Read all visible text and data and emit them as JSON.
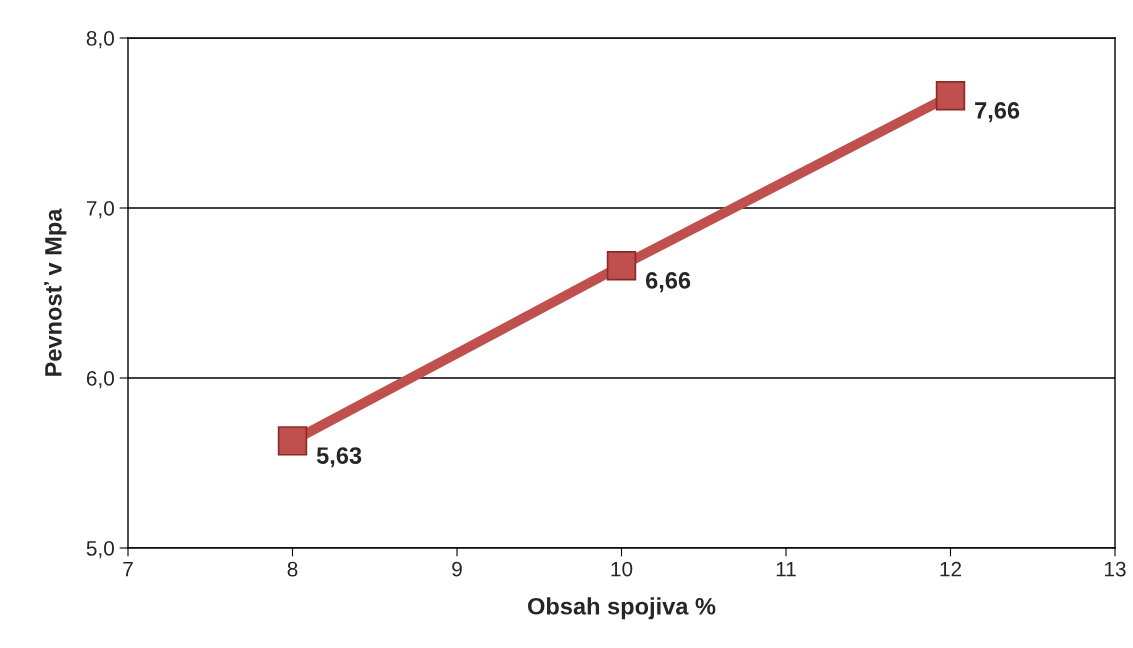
{
  "chart_data": {
    "type": "line",
    "xlabel": "Obsah spojiva %",
    "ylabel": "Pevnosť v Mpa",
    "x": [
      8,
      10,
      12
    ],
    "series": [
      {
        "color": "#c0504d",
        "values": [
          5.63,
          6.66,
          7.66
        ],
        "value_labels": [
          "5,63",
          "6,66",
          "7,66"
        ]
      }
    ],
    "xlim": [
      7,
      13
    ],
    "xticks": [
      7,
      8,
      9,
      10,
      11,
      12,
      13
    ],
    "ylim": [
      5,
      8
    ],
    "yticks": [
      {
        "value": 5,
        "label": "5,0"
      },
      {
        "value": 6,
        "label": "6,0"
      },
      {
        "value": 7,
        "label": "7,0"
      },
      {
        "value": 8,
        "label": "8,0"
      }
    ],
    "grid": "y",
    "marker": "square",
    "line_style": "solid",
    "legend": false
  }
}
